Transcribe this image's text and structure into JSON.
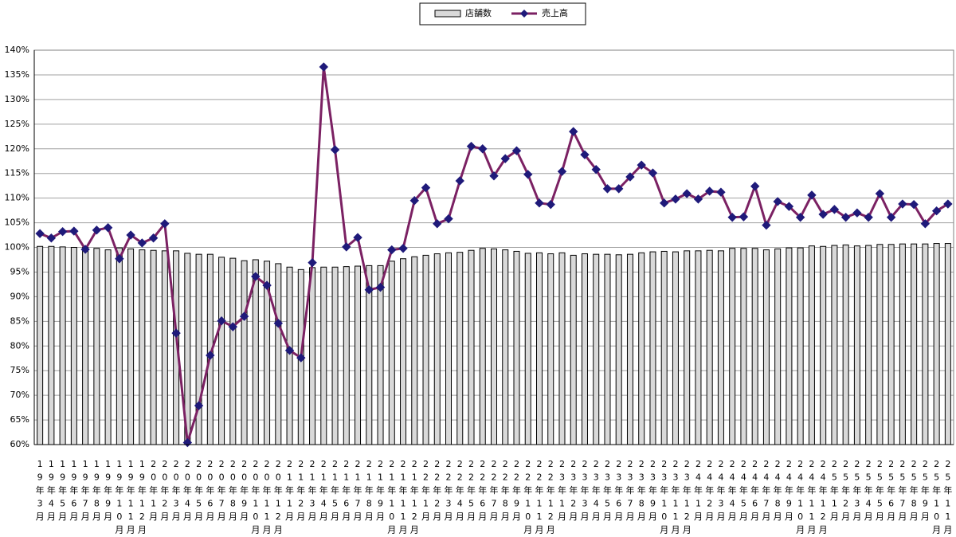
{
  "chart_data": {
    "type": "bar",
    "categories": [
      "19年3月",
      "19年4月",
      "19年5月",
      "19年6月",
      "19年7月",
      "19年8月",
      "19年9月",
      "19年10月",
      "19年11月",
      "19年12月",
      "20年1月",
      "20年2月",
      "20年3月",
      "20年4月",
      "20年5月",
      "20年6月",
      "20年7月",
      "20年8月",
      "20年9月",
      "20年10月",
      "20年11月",
      "20年12月",
      "21年1月",
      "21年2月",
      "21年3月",
      "21年4月",
      "21年5月",
      "21年6月",
      "21年7月",
      "21年8月",
      "21年9月",
      "21年10月",
      "21年11月",
      "21年12月",
      "22年1月",
      "22年2月",
      "22年3月",
      "22年4月",
      "22年5月",
      "22年6月",
      "22年7月",
      "22年8月",
      "22年9月",
      "22年10月",
      "22年11月",
      "22年12月",
      "23年1月",
      "23年2月",
      "23年3月",
      "23年4月",
      "23年5月",
      "23年6月",
      "23年7月",
      "23年8月",
      "23年9月",
      "23年10月",
      "23年11月",
      "23年12月",
      "24年1月",
      "24年2月",
      "24年3月",
      "24年4月",
      "24年5月",
      "24年6月",
      "24年7月",
      "24年8月",
      "24年9月",
      "24年10月",
      "24年11月",
      "24年12月",
      "25年1月",
      "25年2月",
      "25年3月",
      "25年4月",
      "25年5月",
      "25年6月",
      "25年7月",
      "25年8月",
      "25年9月",
      "25年10月",
      "25年11月"
    ],
    "series": [
      {
        "name": "店舗数",
        "type": "bar",
        "color": "#d9d9d9",
        "values": [
          100.2,
          100.2,
          100.1,
          100.0,
          100.0,
          99.8,
          99.5,
          99.9,
          99.7,
          99.5,
          99.4,
          99.3,
          99.3,
          98.8,
          98.6,
          98.6,
          98.0,
          97.8,
          97.3,
          97.5,
          97.2,
          96.7,
          96.0,
          95.5,
          95.9,
          96.0,
          96.0,
          96.1,
          96.2,
          96.3,
          96.3,
          97.2,
          97.7,
          98.1,
          98.4,
          98.7,
          98.9,
          99.0,
          99.4,
          99.8,
          99.7,
          99.5,
          99.2,
          98.8,
          98.9,
          98.7,
          98.9,
          98.4,
          98.7,
          98.6,
          98.6,
          98.5,
          98.6,
          98.9,
          99.1,
          99.2,
          99.1,
          99.3,
          99.3,
          99.4,
          99.3,
          99.8,
          99.8,
          99.8,
          99.5,
          99.7,
          99.9,
          99.9,
          100.3,
          100.2,
          100.4,
          100.5,
          100.3,
          100.4,
          100.6,
          100.6,
          100.7,
          100.7,
          100.7,
          100.8,
          100.8
        ]
      },
      {
        "name": "売上高",
        "type": "line",
        "color": "#7b2163",
        "marker_color": "#1f1a7a",
        "values": [
          102.8,
          101.9,
          103.2,
          103.3,
          99.6,
          103.5,
          104.0,
          97.7,
          102.5,
          100.9,
          101.9,
          104.8,
          82.6,
          60.4,
          67.9,
          78.1,
          85.1,
          83.9,
          86.0,
          94.1,
          92.3,
          84.6,
          79.1,
          77.6,
          96.9,
          136.6,
          119.8,
          100.1,
          102.0,
          91.4,
          91.9,
          99.5,
          99.8,
          109.5,
          112.1,
          104.8,
          105.8,
          113.5,
          120.5,
          120.0,
          114.5,
          118.0,
          119.6,
          114.8,
          109.0,
          108.7,
          115.4,
          123.5,
          118.8,
          115.8,
          111.9,
          111.9,
          114.3,
          116.7,
          115.1,
          109.0,
          109.8,
          110.9,
          109.8,
          111.4,
          111.2,
          106.1,
          106.2,
          112.4,
          104.5,
          109.3,
          108.3,
          106.1,
          110.6,
          106.7,
          107.7,
          106.1,
          107.0,
          106.1,
          110.9,
          106.1,
          108.8,
          108.7,
          104.8,
          107.4,
          108.8
        ]
      }
    ],
    "ylim": [
      60,
      140
    ],
    "yticks": [
      {
        "value": 60,
        "label": "60%"
      },
      {
        "value": 65,
        "label": "65%"
      },
      {
        "value": 70,
        "label": "70%"
      },
      {
        "value": 75,
        "label": "75%"
      },
      {
        "value": 80,
        "label": "80%"
      },
      {
        "value": 85,
        "label": "85%"
      },
      {
        "value": 90,
        "label": "90%"
      },
      {
        "value": 95,
        "label": "95%"
      },
      {
        "value": 100,
        "label": "100%"
      },
      {
        "value": 105,
        "label": "105%"
      },
      {
        "value": 110,
        "label": "110%"
      },
      {
        "value": 115,
        "label": "115%"
      },
      {
        "value": 120,
        "label": "120%"
      },
      {
        "value": 125,
        "label": "125%"
      },
      {
        "value": 130,
        "label": "130%"
      },
      {
        "value": 135,
        "label": "135%"
      },
      {
        "value": 140,
        "label": "140%"
      }
    ],
    "grid": true,
    "legend": "top"
  }
}
